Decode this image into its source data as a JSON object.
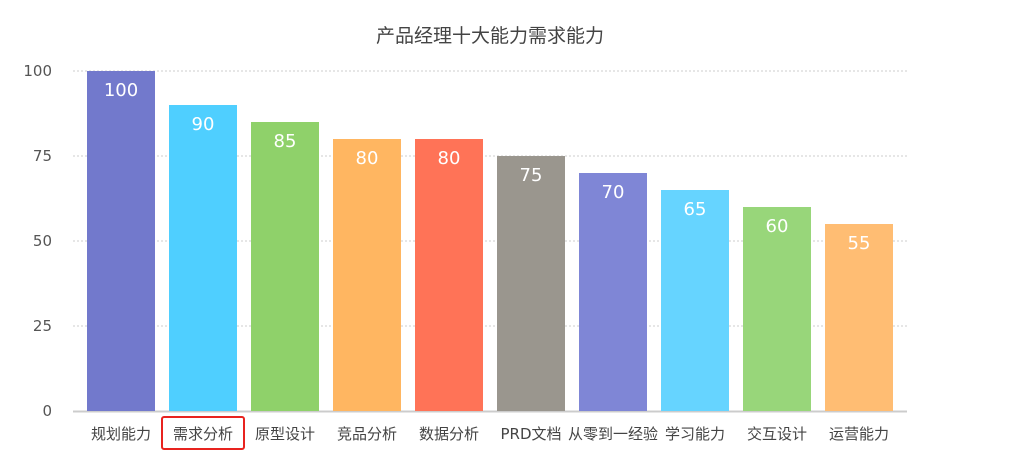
{
  "chart_data": {
    "type": "bar",
    "title": "产品经理十大能力需求能力",
    "categories": [
      "规划能力",
      "需求分析",
      "原型设计",
      "竞品分析",
      "数据分析",
      "PRD文档",
      "从零到一经验",
      "学习能力",
      "交互设计",
      "运营能力"
    ],
    "values": [
      100,
      90,
      85,
      80,
      80,
      75,
      70,
      65,
      60,
      55
    ],
    "colors": [
      "#7279cc",
      "#4fcfff",
      "#8fd16a",
      "#ffb661",
      "#ff7357",
      "#9a968e",
      "#7f86d6",
      "#66d4ff",
      "#98d67a",
      "#ffbd73"
    ],
    "ylim": [
      0,
      100
    ],
    "yticks": [
      0,
      25,
      50,
      75,
      100
    ],
    "grid": true,
    "data_labels": "inside-top",
    "highlighted_category": "需求分析",
    "highlight_color": "#e8231f"
  }
}
